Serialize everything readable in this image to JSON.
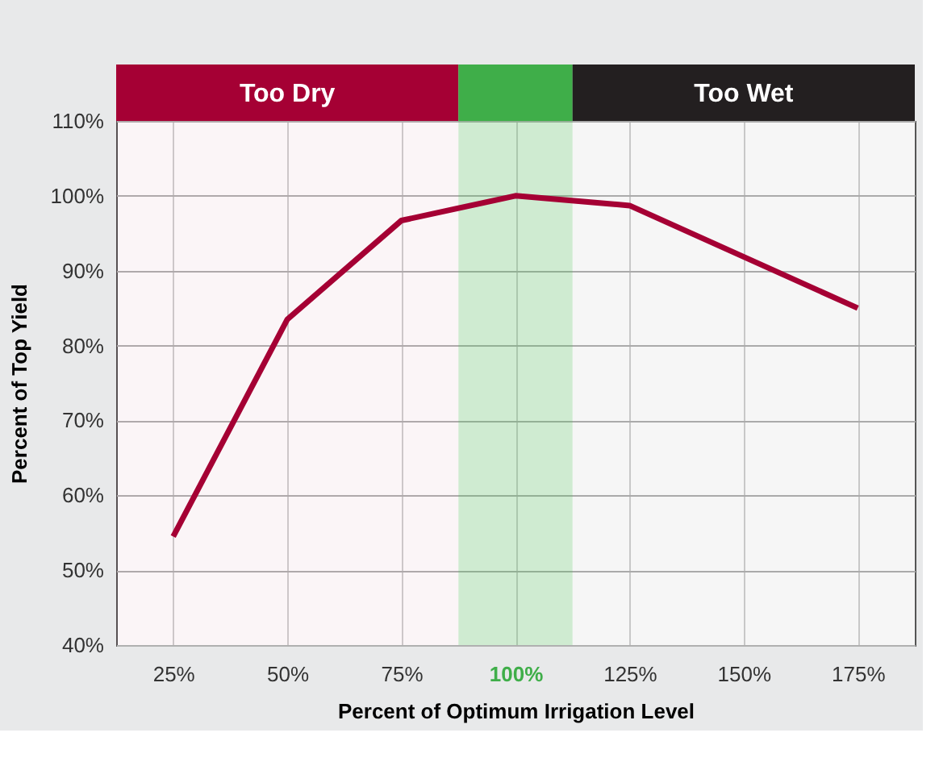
{
  "chart_data": {
    "type": "line",
    "xlabel": "Percent of Optimum Irrigation Level",
    "ylabel": "Percent of Top Yield",
    "x": [
      25,
      50,
      75,
      100,
      125,
      175
    ],
    "series": [
      {
        "color": "#a50034",
        "values": [
          54.5,
          83.5,
          96.7,
          100,
          98.7,
          85
        ]
      }
    ],
    "xlim": [
      12.5,
      187.5
    ],
    "ylim": [
      40,
      110
    ],
    "xticks": [
      {
        "value": 25,
        "label": "25%"
      },
      {
        "value": 50,
        "label": "50%"
      },
      {
        "value": 75,
        "label": "75%"
      },
      {
        "value": 100,
        "label": "100%"
      },
      {
        "value": 125,
        "label": "125%"
      },
      {
        "value": 150,
        "label": "150%"
      },
      {
        "value": 175,
        "label": "175%"
      }
    ],
    "yticks": [
      {
        "value": 40,
        "label": "40%"
      },
      {
        "value": 50,
        "label": "50%"
      },
      {
        "value": 60,
        "label": "60%"
      },
      {
        "value": 70,
        "label": "70%"
      },
      {
        "value": 80,
        "label": "80%"
      },
      {
        "value": 90,
        "label": "90%"
      },
      {
        "value": 100,
        "label": "100%"
      },
      {
        "value": 110,
        "label": "110%"
      }
    ],
    "bands": [
      {
        "axis": "x",
        "from": 12.5,
        "to": 87.5,
        "label": "Too Dry",
        "color": "#a50034"
      },
      {
        "axis": "x",
        "from": 87.5,
        "to": 112.5,
        "color": "#3fae49"
      },
      {
        "axis": "x",
        "from": 112.5,
        "to": 187.5,
        "label": "Too Wet",
        "color": "#231f20"
      }
    ],
    "grid": true,
    "marker": "none",
    "line_style": "solid"
  }
}
